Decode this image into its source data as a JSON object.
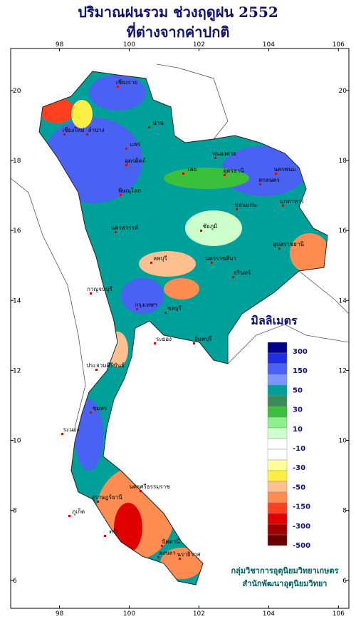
{
  "title": [
    "ปริมาณฝนรวม ช่วงฤดูฝน 2552",
    "ที่ต่างจากค่าปกติ"
  ],
  "map": {
    "xlim": [
      96.6,
      106.3
    ],
    "ylim": [
      5.2,
      21.2
    ],
    "xticks": [
      98,
      100,
      102,
      104,
      106
    ],
    "yticks": [
      6,
      8,
      10,
      12,
      14,
      16,
      18,
      20
    ],
    "labels": [
      "เชียงราย",
      "น่าน",
      "เชียงใหม่",
      "ลำปาง",
      "แพร่",
      "อุตรดิตถ์",
      "หนองคาย",
      "นครพนม",
      "อุดรธานี",
      "สกลนคร",
      "มุกดาหาร",
      "ขอนแก่น",
      "เลย",
      "พิษณุโลก",
      "นครสวรรค์",
      "ชัยภูมิ",
      "อุบลราชธานี",
      "นครราชสีมา",
      "สุรินทร์",
      "ลพบุรี",
      "กาญจนบุรี",
      "กรุงเทพฯ",
      "ชลบุรี",
      "จันทบุรี",
      "ระยอง",
      "ประจวบคีรีขันธ์",
      "ชุมพร",
      "ระนอง",
      "สุราษฎร์ธานี",
      "นครศรีธรรมราช",
      "ภูเก็ต",
      "ตรัง",
      "สงขลา",
      "ปัตตานี",
      "นราธิวาส"
    ]
  },
  "legend": {
    "title": "มิลลิเมตร",
    "colors": [
      "#00008c",
      "#1e2ee0",
      "#4a62f4",
      "#7c96ff",
      "#00a09a",
      "#3c8a5a",
      "#3cc03c",
      "#8cf08c",
      "#ccffcc",
      "#ffffff",
      "#ffffff",
      "#ffff99",
      "#ffee44",
      "#ffc090",
      "#ff8c50",
      "#ff4020",
      "#e00000",
      "#a00000",
      "#6a0000"
    ],
    "labels": [
      300,
      150,
      50,
      30,
      10,
      -10,
      -30,
      -50,
      -150,
      -300,
      -500
    ]
  },
  "credit": [
    "กลุ่มวิชาการอุตุนิยมวิทยาเกษตร",
    "สำนักพัฒนาอุตุนิยมวิทยา"
  ]
}
